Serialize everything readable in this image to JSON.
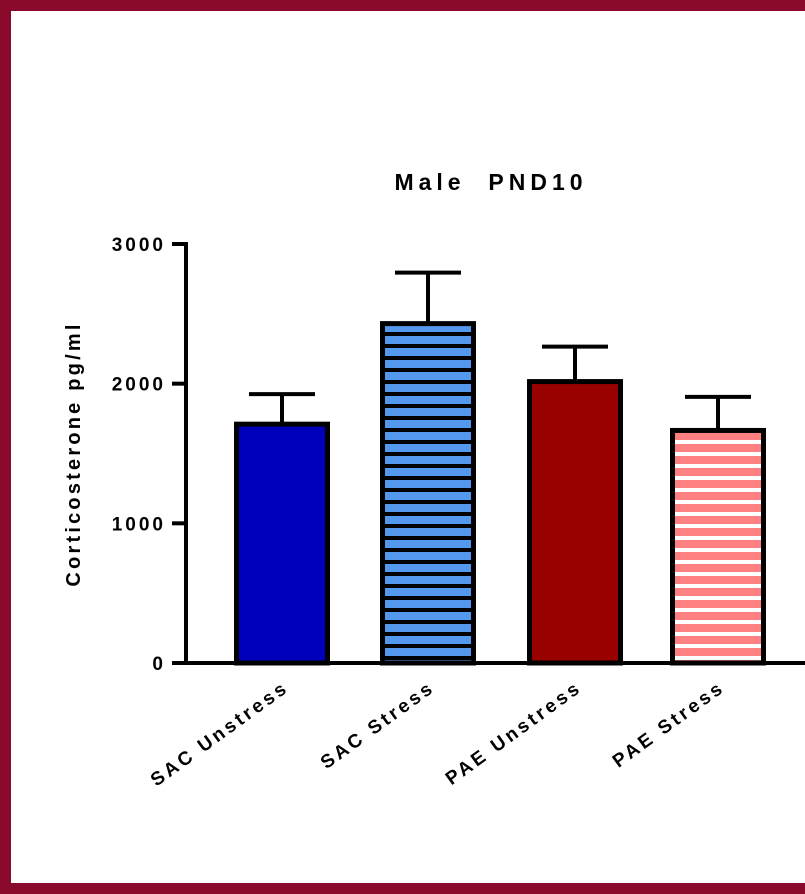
{
  "chart_data": {
    "type": "bar",
    "title": "Male  PND10",
    "xlabel": "",
    "ylabel": "Corticosterone pg/ml",
    "categories": [
      "SAC Unstress",
      "SAC Stress",
      "PAE Unstress",
      "PAE Stress"
    ],
    "values": [
      1710,
      2430,
      2015,
      1665
    ],
    "error_plus": [
      215,
      365,
      250,
      240
    ],
    "ylim": [
      0,
      3000
    ],
    "yticks": [
      "0",
      "1000",
      "2000",
      "3000"
    ],
    "ytick_values": [
      0,
      1000,
      2000,
      3000
    ],
    "grid": false,
    "bar_styles": [
      {
        "fill": "#0000bb",
        "pattern": "solid"
      },
      {
        "fill": "#5599ee",
        "stripe": "#000000",
        "pattern": "horizontal-stripes"
      },
      {
        "fill": "#990000",
        "pattern": "solid"
      },
      {
        "fill": "#ff8080",
        "stripe": "#ffffff",
        "pattern": "horizontal-stripes"
      }
    ],
    "frame_color": "#8a0a2b"
  }
}
